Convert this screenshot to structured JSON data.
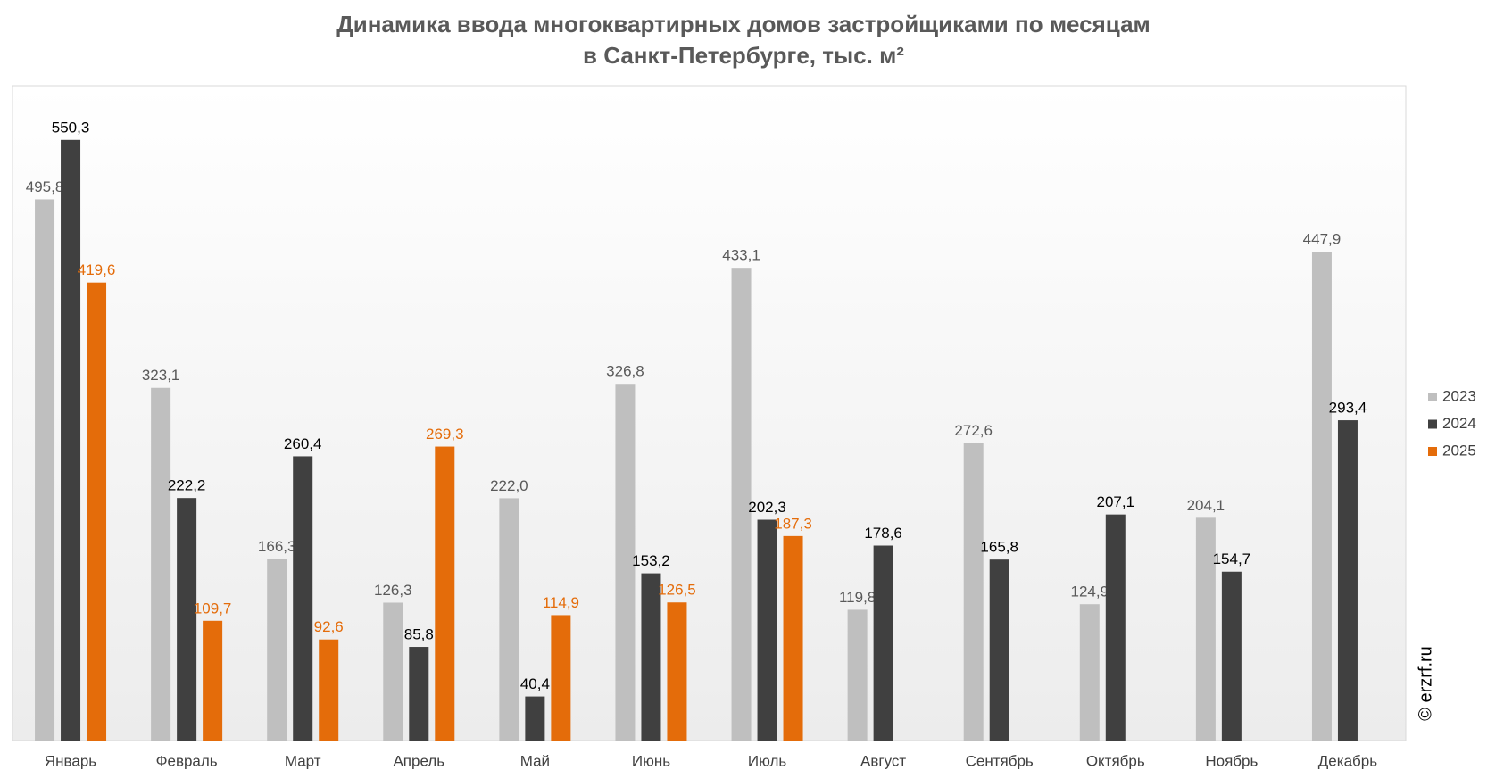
{
  "chart_data": {
    "type": "bar",
    "title": [
      "Динамика ввода многоквартирных домов застройщиками по месяцам",
      "в Санкт-Петербурге, тыс. м²"
    ],
    "categories": [
      "Январь",
      "Февраль",
      "Март",
      "Апрель",
      "Май",
      "Июнь",
      "Июль",
      "Август",
      "Сентябрь",
      "Октябрь",
      "Ноябрь",
      "Декабрь"
    ],
    "series": [
      {
        "name": "2023",
        "color": "#bfbfbf",
        "label_color": "#595959",
        "values": [
          495.8,
          323.1,
          166.3,
          126.3,
          222.0,
          326.8,
          433.1,
          119.8,
          272.6,
          124.9,
          204.1,
          447.9
        ],
        "value_labels": [
          "495,8",
          "323,1",
          "166,3",
          "126,3",
          "222,0",
          "326,8",
          "433,1",
          "119,8",
          "272,6",
          "124,9",
          "204,1",
          "447,9"
        ]
      },
      {
        "name": "2024",
        "color": "#404040",
        "label_color": "#000000",
        "values": [
          550.3,
          222.2,
          260.4,
          85.8,
          40.4,
          153.2,
          202.3,
          178.6,
          165.8,
          207.1,
          154.7,
          293.4
        ],
        "value_labels": [
          "550,3",
          "222,2",
          "260,4",
          "85,8",
          "40,4",
          "153,2",
          "202,3",
          "178,6",
          "165,8",
          "207,1",
          "154,7",
          "293,4"
        ]
      },
      {
        "name": "2025",
        "color": "#e46c0a",
        "label_color": "#e46c0a",
        "values": [
          419.6,
          109.7,
          92.6,
          269.3,
          114.9,
          126.5,
          187.3,
          null,
          null,
          null,
          null,
          null
        ],
        "value_labels": [
          "419,6",
          "109,7",
          "92,6",
          "269,3",
          "114,9",
          "126,5",
          "187,3",
          null,
          null,
          null,
          null,
          null
        ]
      }
    ],
    "ylim": [
      0,
      600
    ],
    "legend": "right",
    "watermark": "© erzrf.ru"
  }
}
